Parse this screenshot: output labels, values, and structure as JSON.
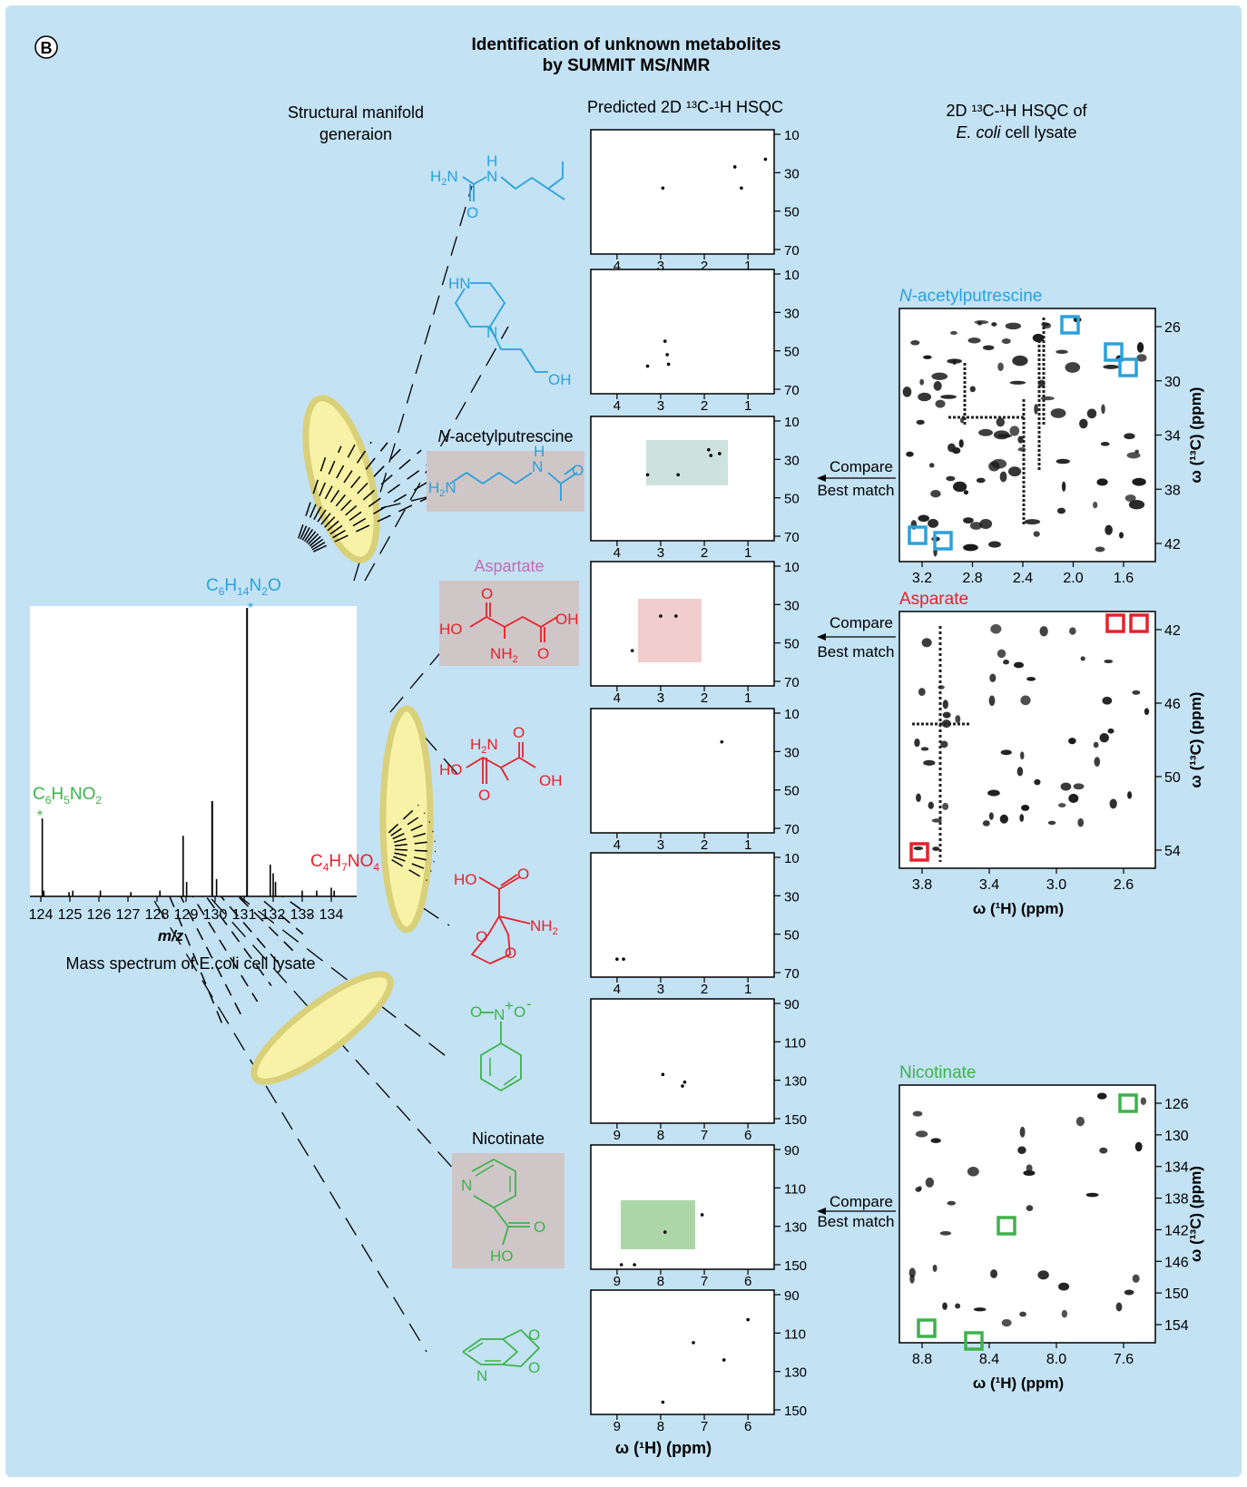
{
  "panel_label": "B",
  "title_line1": "Identification of unknown metabolites",
  "title_line2": "by SUMMIT MS/NMR",
  "headers": {
    "manifold_line1": "Structural manifold",
    "manifold_line2": "generaion",
    "predicted": "Predicted 2D ¹³C-¹H HSQC",
    "exp_line1": "2D ¹³C-¹H HSQC of",
    "exp_line2_italic": "E. coli",
    "exp_line2_rest": " cell lysate"
  },
  "colors": {
    "background": "#c3e2f4",
    "blue": "#2aa1dc",
    "red": "#e8202a",
    "green": "#3db34a",
    "pink": "#c36db3",
    "ellipse": "#f8f2a6",
    "ellipse_stroke": "#d9d07a",
    "grey_box": "#cfc6c8"
  },
  "mass_spectrum": {
    "caption": "Mass spectrum of E.coli cell lysate",
    "xlabel": "m/z",
    "xticks": [
      "124",
      "125",
      "126",
      "127",
      "128",
      "129",
      "130",
      "131",
      "132",
      "133",
      "134"
    ],
    "formula_top": "C6H14N2O",
    "formula_left": "C6H5NO2",
    "formula_right": "C4H7NO4",
    "peaks": [
      {
        "mz": 124.05,
        "h": 0.27
      },
      {
        "mz": 124.1,
        "h": 0.02
      },
      {
        "mz": 124.97,
        "h": 0.015
      },
      {
        "mz": 125.1,
        "h": 0.02
      },
      {
        "mz": 126.05,
        "h": 0.02
      },
      {
        "mz": 127.1,
        "h": 0.015
      },
      {
        "mz": 128.1,
        "h": 0.02
      },
      {
        "mz": 128.9,
        "h": 0.21
      },
      {
        "mz": 129.02,
        "h": 0.05
      },
      {
        "mz": 129.9,
        "h": 0.33
      },
      {
        "mz": 130.05,
        "h": 0.06
      },
      {
        "mz": 131.1,
        "h": 1.0
      },
      {
        "mz": 131.9,
        "h": 0.11
      },
      {
        "mz": 132.0,
        "h": 0.08
      },
      {
        "mz": 132.08,
        "h": 0.05
      },
      {
        "mz": 133.0,
        "h": 0.02
      },
      {
        "mz": 133.5,
        "h": 0.02
      },
      {
        "mz": 134.0,
        "h": 0.03
      },
      {
        "mz": 134.1,
        "h": 0.02
      }
    ]
  },
  "structures": [
    {
      "id": "s1",
      "color": "blue",
      "label": "",
      "labels": [
        "H2N",
        "H",
        "N",
        "O"
      ]
    },
    {
      "id": "s2",
      "color": "blue",
      "label": "",
      "labels": [
        "HN",
        "N",
        "OH"
      ]
    },
    {
      "id": "s3",
      "color": "blue",
      "label": "N-acetylputrescine",
      "labels": [
        "H2N",
        "H",
        "N",
        "O"
      ]
    },
    {
      "id": "s4",
      "color": "red",
      "label": "Aspartate",
      "labels": [
        "HO",
        "O",
        "OH",
        "O",
        "NH2"
      ]
    },
    {
      "id": "s5",
      "color": "red",
      "label": "",
      "labels": [
        "H2N",
        "O",
        "HO",
        "OH",
        "O"
      ]
    },
    {
      "id": "s6",
      "color": "red",
      "label": "",
      "labels": [
        "HO",
        "O",
        "NH2",
        "O",
        "O"
      ]
    },
    {
      "id": "s7",
      "color": "green",
      "label": "",
      "labels": [
        "O",
        "N+",
        "O-"
      ]
    },
    {
      "id": "s8",
      "color": "green",
      "label": "Nicotinate",
      "labels": [
        "N",
        "O",
        "HO"
      ]
    },
    {
      "id": "s9",
      "color": "green",
      "label": "",
      "labels": [
        "O",
        "O",
        "N"
      ]
    }
  ],
  "predicted_plots": [
    {
      "yt": [
        "10",
        "30",
        "50",
        "70"
      ],
      "xt": [
        "4",
        "3",
        "2",
        "1"
      ],
      "pts": [
        [
          2.95,
          38
        ],
        [
          1.3,
          27
        ],
        [
          1.15,
          38
        ],
        [
          0.6,
          23
        ]
      ]
    },
    {
      "yt": [
        "10",
        "30",
        "50",
        "70"
      ],
      "xt": [
        "4",
        "3",
        "2",
        "1"
      ],
      "pts": [
        [
          3.3,
          58
        ],
        [
          2.9,
          45
        ],
        [
          2.85,
          52
        ],
        [
          2.82,
          57
        ]
      ]
    },
    {
      "yt": [
        "10",
        "30",
        "50",
        "70"
      ],
      "xt": [
        "4",
        "3",
        "2",
        "1"
      ],
      "pts": [
        [
          3.3,
          38
        ],
        [
          2.6,
          38
        ],
        [
          1.9,
          25
        ],
        [
          1.85,
          28
        ],
        [
          1.65,
          27
        ]
      ]
    },
    {
      "yt": [
        "10",
        "30",
        "50",
        "70"
      ],
      "xt": [
        "4",
        "3",
        "2",
        "1"
      ],
      "pts": [
        [
          3.0,
          36
        ],
        [
          2.65,
          36
        ],
        [
          3.65,
          54
        ]
      ]
    },
    {
      "yt": [
        "10",
        "30",
        "50",
        "70"
      ],
      "xt": [
        "4",
        "3",
        "2",
        "1"
      ],
      "pts": [
        [
          1.6,
          25
        ]
      ]
    },
    {
      "yt": [
        "10",
        "30",
        "50",
        "70"
      ],
      "xt": [
        "4",
        "3",
        "2",
        "1"
      ],
      "pts": [
        [
          4.0,
          63
        ],
        [
          3.85,
          63
        ]
      ]
    },
    {
      "yt": [
        "90",
        "110",
        "130",
        "150"
      ],
      "xt": [
        "9",
        "8",
        "7",
        "6"
      ],
      "pts": [
        [
          7.95,
          127
        ],
        [
          7.5,
          133
        ],
        [
          7.45,
          131
        ]
      ]
    },
    {
      "yt": [
        "90",
        "110",
        "130",
        "150"
      ],
      "xt": [
        "9",
        "8",
        "7",
        "6"
      ],
      "pts": [
        [
          7.05,
          124
        ],
        [
          7.9,
          133
        ],
        [
          8.9,
          150
        ],
        [
          8.6,
          150
        ]
      ]
    },
    {
      "yt": [
        "90",
        "110",
        "130",
        "150"
      ],
      "xt": [
        "9",
        "8",
        "7",
        "6"
      ],
      "pts": [
        [
          6.0,
          103
        ],
        [
          7.25,
          115
        ],
        [
          6.55,
          124
        ],
        [
          7.95,
          146
        ]
      ]
    }
  ],
  "predicted_xlabel": "ω (¹H) (ppm)",
  "compare_label": "Compare",
  "best_match_label": "Best match",
  "experimental": [
    {
      "title": "N-acetylputrescine",
      "color": "blue",
      "xticks": [
        "3.2",
        "2.8",
        "2.4",
        "2.0",
        "1.6"
      ],
      "yticks": [
        "26",
        "30",
        "34",
        "38",
        "42"
      ],
      "ylabel": "ω (¹³C) (ppm)",
      "xlabel": ""
    },
    {
      "title": "Asparate",
      "color": "red",
      "xticks": [
        "3.8",
        "3.4",
        "3.0",
        "2.6"
      ],
      "yticks": [
        "42",
        "46",
        "50",
        "54"
      ],
      "ylabel": "ω (¹³C) (ppm)",
      "xlabel": "ω (¹H) (ppm)"
    },
    {
      "title": "Nicotinate",
      "color": "green",
      "xticks": [
        "8.8",
        "8.4",
        "8.0",
        "7.6"
      ],
      "yticks": [
        "126",
        "130",
        "134",
        "138",
        "142",
        "146",
        "150",
        "154"
      ],
      "ylabel": "ω (¹³C) (ppm)",
      "xlabel": "ω (¹H) (ppm)"
    }
  ]
}
